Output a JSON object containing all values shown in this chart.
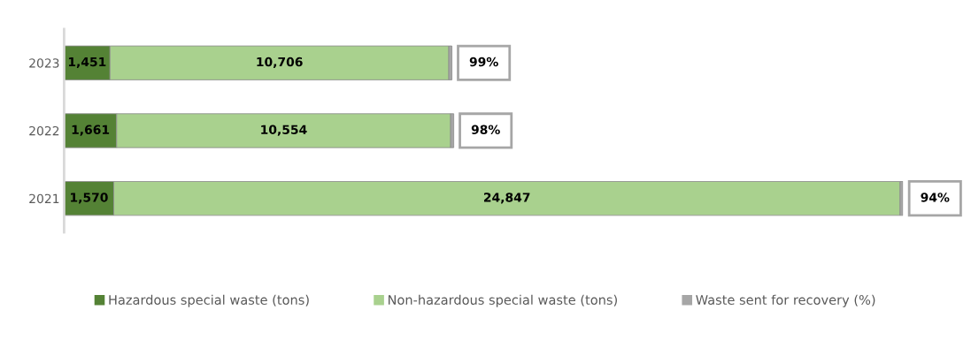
{
  "chart_data": {
    "type": "bar",
    "orientation": "horizontal",
    "stacked": true,
    "categories": [
      "2023",
      "2022",
      "2021"
    ],
    "series": [
      {
        "name": "Hazardous special waste (tons)",
        "color": "#548235",
        "values": [
          1451,
          1661,
          1570
        ],
        "value_labels": [
          "1,451",
          "1,661",
          "1,570"
        ]
      },
      {
        "name": "Non-hazardous special waste (tons)",
        "color": "#a9d18e",
        "values": [
          10706,
          10554,
          24847
        ],
        "value_labels": [
          "10,706",
          "10,554",
          "24,847"
        ]
      },
      {
        "name": "Waste sent for recovery (%)",
        "color": "#a6a6a6",
        "values": [
          99,
          98,
          94
        ],
        "value_labels": [
          "99%",
          "98%",
          "94%"
        ]
      }
    ],
    "legend": "bottom",
    "grid": false,
    "tick_labels": "y"
  }
}
